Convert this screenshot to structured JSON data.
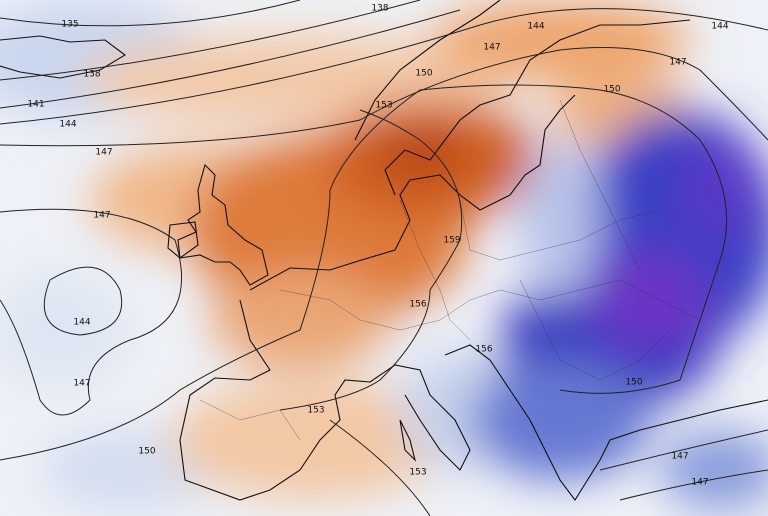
{
  "contour_labels": [
    135,
    138,
    138,
    141,
    144,
    147,
    144,
    147,
    150,
    153,
    150,
    147,
    144,
    147,
    144,
    147,
    150,
    159,
    156,
    156,
    150,
    153,
    153,
    147,
    147
  ]
}
